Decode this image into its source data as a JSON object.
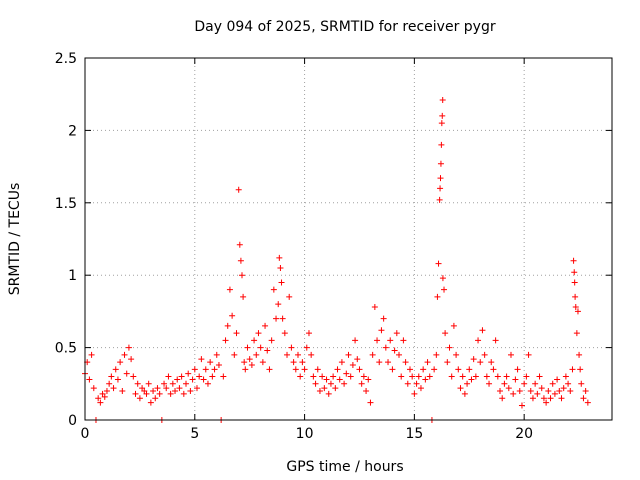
{
  "chart_data": {
    "type": "scatter",
    "title": "Day 094 of 2025, SRMTID for receiver pygr",
    "xlabel": "GPS time / hours",
    "ylabel": "SRMTID / TECUs",
    "xlim": [
      0,
      24
    ],
    "ylim": [
      0,
      2.5
    ],
    "xticks": [
      0,
      5,
      10,
      15,
      20
    ],
    "yticks": [
      0,
      0.5,
      1,
      1.5,
      2,
      2.5
    ],
    "xtick_labels": [
      "0",
      "5",
      "10",
      "15",
      "20"
    ],
    "ytick_labels": [
      "0",
      "0.5",
      "1",
      "1.5",
      "2",
      "2.5"
    ],
    "grid": true,
    "marker": "+",
    "series": [
      {
        "name": "SRMTID",
        "color": "#ff0000",
        "points": [
          [
            0.0,
            0.32
          ],
          [
            0.1,
            0.4
          ],
          [
            0.2,
            0.28
          ],
          [
            0.3,
            0.45
          ],
          [
            0.4,
            0.22
          ],
          [
            0.5,
            0.0
          ],
          [
            0.6,
            0.15
          ],
          [
            0.7,
            0.12
          ],
          [
            0.8,
            0.18
          ],
          [
            0.9,
            0.16
          ],
          [
            1.0,
            0.2
          ],
          [
            1.1,
            0.25
          ],
          [
            1.2,
            0.3
          ],
          [
            1.3,
            0.22
          ],
          [
            1.4,
            0.35
          ],
          [
            1.5,
            0.28
          ],
          [
            1.6,
            0.4
          ],
          [
            1.7,
            0.2
          ],
          [
            1.8,
            0.45
          ],
          [
            1.9,
            0.32
          ],
          [
            2.0,
            0.5
          ],
          [
            2.1,
            0.42
          ],
          [
            2.2,
            0.3
          ],
          [
            2.3,
            0.18
          ],
          [
            2.4,
            0.25
          ],
          [
            2.5,
            0.15
          ],
          [
            2.6,
            0.22
          ],
          [
            2.7,
            0.2
          ],
          [
            2.8,
            0.18
          ],
          [
            2.9,
            0.25
          ],
          [
            3.0,
            0.12
          ],
          [
            3.1,
            0.2
          ],
          [
            3.2,
            0.15
          ],
          [
            3.3,
            0.22
          ],
          [
            3.4,
            0.18
          ],
          [
            3.5,
            0.0
          ],
          [
            3.6,
            0.25
          ],
          [
            3.7,
            0.22
          ],
          [
            3.8,
            0.3
          ],
          [
            3.9,
            0.18
          ],
          [
            4.0,
            0.25
          ],
          [
            4.1,
            0.2
          ],
          [
            4.2,
            0.28
          ],
          [
            4.3,
            0.22
          ],
          [
            4.4,
            0.3
          ],
          [
            4.5,
            0.18
          ],
          [
            4.6,
            0.25
          ],
          [
            4.7,
            0.32
          ],
          [
            4.8,
            0.2
          ],
          [
            4.9,
            0.28
          ],
          [
            5.0,
            0.35
          ],
          [
            5.1,
            0.22
          ],
          [
            5.2,
            0.3
          ],
          [
            5.3,
            0.42
          ],
          [
            5.4,
            0.28
          ],
          [
            5.5,
            0.35
          ],
          [
            5.6,
            0.25
          ],
          [
            5.7,
            0.4
          ],
          [
            5.8,
            0.3
          ],
          [
            5.9,
            0.35
          ],
          [
            6.0,
            0.45
          ],
          [
            6.1,
            0.38
          ],
          [
            6.2,
            0.0
          ],
          [
            6.3,
            0.3
          ],
          [
            6.4,
            0.55
          ],
          [
            6.5,
            0.65
          ],
          [
            6.6,
            0.9
          ],
          [
            6.7,
            0.72
          ],
          [
            6.8,
            0.45
          ],
          [
            6.9,
            0.6
          ],
          [
            7.0,
            1.59
          ],
          [
            7.05,
            1.21
          ],
          [
            7.1,
            1.1
          ],
          [
            7.15,
            1.0
          ],
          [
            7.2,
            0.85
          ],
          [
            7.25,
            0.4
          ],
          [
            7.3,
            0.35
          ],
          [
            7.4,
            0.5
          ],
          [
            7.5,
            0.42
          ],
          [
            7.6,
            0.38
          ],
          [
            7.7,
            0.55
          ],
          [
            7.8,
            0.45
          ],
          [
            7.9,
            0.6
          ],
          [
            8.0,
            0.5
          ],
          [
            8.1,
            0.4
          ],
          [
            8.2,
            0.65
          ],
          [
            8.3,
            0.48
          ],
          [
            8.4,
            0.35
          ],
          [
            8.5,
            0.55
          ],
          [
            8.6,
            0.9
          ],
          [
            8.7,
            0.7
          ],
          [
            8.8,
            0.8
          ],
          [
            8.85,
            1.12
          ],
          [
            8.9,
            1.05
          ],
          [
            8.95,
            0.95
          ],
          [
            9.0,
            0.7
          ],
          [
            9.1,
            0.6
          ],
          [
            9.2,
            0.45
          ],
          [
            9.3,
            0.85
          ],
          [
            9.4,
            0.5
          ],
          [
            9.5,
            0.4
          ],
          [
            9.6,
            0.35
          ],
          [
            9.7,
            0.45
          ],
          [
            9.8,
            0.3
          ],
          [
            9.9,
            0.4
          ],
          [
            10.0,
            0.35
          ],
          [
            10.1,
            0.5
          ],
          [
            10.2,
            0.6
          ],
          [
            10.3,
            0.45
          ],
          [
            10.4,
            0.3
          ],
          [
            10.5,
            0.25
          ],
          [
            10.6,
            0.35
          ],
          [
            10.7,
            0.2
          ],
          [
            10.8,
            0.3
          ],
          [
            10.9,
            0.22
          ],
          [
            11.0,
            0.28
          ],
          [
            11.1,
            0.18
          ],
          [
            11.2,
            0.25
          ],
          [
            11.3,
            0.3
          ],
          [
            11.4,
            0.22
          ],
          [
            11.5,
            0.35
          ],
          [
            11.6,
            0.28
          ],
          [
            11.7,
            0.4
          ],
          [
            11.8,
            0.25
          ],
          [
            11.9,
            0.32
          ],
          [
            12.0,
            0.45
          ],
          [
            12.1,
            0.3
          ],
          [
            12.2,
            0.38
          ],
          [
            12.3,
            0.55
          ],
          [
            12.4,
            0.42
          ],
          [
            12.5,
            0.35
          ],
          [
            12.6,
            0.25
          ],
          [
            12.7,
            0.3
          ],
          [
            12.8,
            0.2
          ],
          [
            12.9,
            0.28
          ],
          [
            13.0,
            0.12
          ],
          [
            13.1,
            0.45
          ],
          [
            13.2,
            0.78
          ],
          [
            13.3,
            0.55
          ],
          [
            13.4,
            0.4
          ],
          [
            13.5,
            0.62
          ],
          [
            13.6,
            0.7
          ],
          [
            13.7,
            0.5
          ],
          [
            13.8,
            0.4
          ],
          [
            13.9,
            0.55
          ],
          [
            14.0,
            0.35
          ],
          [
            14.1,
            0.48
          ],
          [
            14.2,
            0.6
          ],
          [
            14.3,
            0.45
          ],
          [
            14.4,
            0.3
          ],
          [
            14.5,
            0.55
          ],
          [
            14.6,
            0.4
          ],
          [
            14.7,
            0.25
          ],
          [
            14.8,
            0.35
          ],
          [
            14.9,
            0.3
          ],
          [
            15.0,
            0.18
          ],
          [
            15.1,
            0.25
          ],
          [
            15.2,
            0.3
          ],
          [
            15.3,
            0.22
          ],
          [
            15.4,
            0.35
          ],
          [
            15.5,
            0.28
          ],
          [
            15.6,
            0.4
          ],
          [
            15.7,
            0.3
          ],
          [
            15.8,
            0.0
          ],
          [
            15.9,
            0.35
          ],
          [
            16.0,
            0.45
          ],
          [
            16.05,
            0.85
          ],
          [
            16.1,
            1.08
          ],
          [
            16.15,
            1.52
          ],
          [
            16.17,
            1.6
          ],
          [
            16.19,
            1.67
          ],
          [
            16.21,
            1.77
          ],
          [
            16.23,
            1.9
          ],
          [
            16.25,
            2.05
          ],
          [
            16.27,
            2.1
          ],
          [
            16.29,
            2.21
          ],
          [
            16.3,
            0.98
          ],
          [
            16.35,
            0.9
          ],
          [
            16.4,
            0.6
          ],
          [
            16.5,
            0.4
          ],
          [
            16.6,
            0.5
          ],
          [
            16.7,
            0.3
          ],
          [
            16.8,
            0.65
          ],
          [
            16.9,
            0.45
          ],
          [
            17.0,
            0.35
          ],
          [
            17.1,
            0.22
          ],
          [
            17.2,
            0.3
          ],
          [
            17.3,
            0.18
          ],
          [
            17.4,
            0.25
          ],
          [
            17.5,
            0.35
          ],
          [
            17.6,
            0.28
          ],
          [
            17.7,
            0.42
          ],
          [
            17.8,
            0.3
          ],
          [
            17.9,
            0.55
          ],
          [
            18.0,
            0.4
          ],
          [
            18.1,
            0.62
          ],
          [
            18.2,
            0.45
          ],
          [
            18.3,
            0.3
          ],
          [
            18.4,
            0.25
          ],
          [
            18.5,
            0.4
          ],
          [
            18.6,
            0.35
          ],
          [
            18.7,
            0.55
          ],
          [
            18.8,
            0.3
          ],
          [
            18.9,
            0.2
          ],
          [
            19.0,
            0.15
          ],
          [
            19.1,
            0.25
          ],
          [
            19.2,
            0.3
          ],
          [
            19.3,
            0.22
          ],
          [
            19.4,
            0.45
          ],
          [
            19.5,
            0.18
          ],
          [
            19.6,
            0.28
          ],
          [
            19.7,
            0.35
          ],
          [
            19.8,
            0.2
          ],
          [
            19.9,
            0.1
          ],
          [
            20.0,
            0.25
          ],
          [
            20.1,
            0.3
          ],
          [
            20.2,
            0.45
          ],
          [
            20.3,
            0.2
          ],
          [
            20.4,
            0.15
          ],
          [
            20.5,
            0.25
          ],
          [
            20.6,
            0.18
          ],
          [
            20.7,
            0.3
          ],
          [
            20.8,
            0.22
          ],
          [
            20.9,
            0.15
          ],
          [
            21.0,
            0.12
          ],
          [
            21.1,
            0.2
          ],
          [
            21.2,
            0.15
          ],
          [
            21.3,
            0.25
          ],
          [
            21.4,
            0.18
          ],
          [
            21.5,
            0.28
          ],
          [
            21.6,
            0.2
          ],
          [
            21.7,
            0.15
          ],
          [
            21.8,
            0.22
          ],
          [
            21.9,
            0.3
          ],
          [
            22.0,
            0.25
          ],
          [
            22.1,
            0.2
          ],
          [
            22.2,
            0.35
          ],
          [
            22.25,
            1.1
          ],
          [
            22.28,
            1.02
          ],
          [
            22.3,
            0.95
          ],
          [
            22.32,
            0.85
          ],
          [
            22.35,
            0.78
          ],
          [
            22.4,
            0.6
          ],
          [
            22.45,
            0.75
          ],
          [
            22.5,
            0.45
          ],
          [
            22.55,
            0.35
          ],
          [
            22.6,
            0.25
          ],
          [
            22.7,
            0.15
          ],
          [
            22.8,
            0.2
          ],
          [
            22.9,
            0.12
          ]
        ]
      }
    ]
  }
}
